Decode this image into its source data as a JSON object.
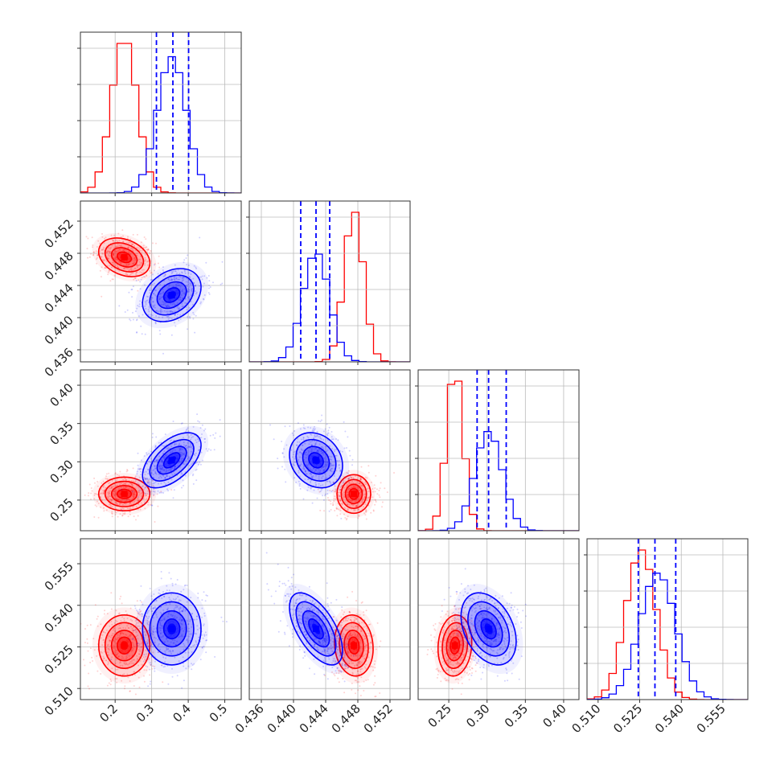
{
  "chart_data": {
    "type": "corner",
    "title": "",
    "grid": true,
    "parameters": [
      {
        "ticks": [
          "0.2",
          "0.3",
          "0.4",
          "0.5"
        ],
        "tick_values": [
          0.2,
          0.3,
          0.4,
          0.5
        ],
        "range": [
          0.105,
          0.545
        ]
      },
      {
        "ticks": [
          "0.436",
          "0.440",
          "0.444",
          "0.448",
          "0.452"
        ],
        "tick_values": [
          0.436,
          0.44,
          0.444,
          0.448,
          0.452
        ],
        "range": [
          0.4345,
          0.4545
        ]
      },
      {
        "ticks": [
          "0.25",
          "0.30",
          "0.35",
          "0.40"
        ],
        "tick_values": [
          0.25,
          0.3,
          0.35,
          0.4
        ],
        "range": [
          0.21,
          0.42
        ]
      },
      {
        "ticks": [
          "0.510",
          "0.525",
          "0.540",
          "0.555"
        ],
        "tick_values": [
          0.51,
          0.525,
          0.54,
          0.555
        ],
        "range": [
          0.506,
          0.564
        ]
      }
    ],
    "series": [
      {
        "color": "#ff0000",
        "mean": [
          0.225,
          0.4475,
          0.258,
          0.5255
        ],
        "std": [
          0.035,
          0.0012,
          0.011,
          0.0055
        ],
        "corr": [
          [
            1,
            -0.3,
            0.0,
            0.0
          ],
          [
            -0.3,
            1,
            0.0,
            -0.1
          ],
          [
            0.0,
            0.0,
            1,
            0.1
          ],
          [
            0.0,
            -0.1,
            0.1,
            1
          ]
        ]
      },
      {
        "color": "#0000ff",
        "mean": [
          0.355,
          0.4428,
          0.302,
          0.5315
        ],
        "std": [
          0.04,
          0.00165,
          0.018,
          0.0065
        ],
        "corr": [
          [
            1,
            0.3,
            0.55,
            0.0
          ],
          [
            0.3,
            1,
            -0.2,
            -0.6
          ],
          [
            0.55,
            -0.2,
            1,
            -0.35
          ],
          [
            0.0,
            -0.6,
            -0.35,
            1
          ]
        ]
      }
    ],
    "quantile_lines": {
      "color": "#0000ff",
      "values": [
        [
          0.313,
          0.358,
          0.401
        ],
        [
          0.4409,
          0.4428,
          0.4445
        ],
        [
          0.287,
          0.302,
          0.325
        ],
        [
          0.5245,
          0.5305,
          0.538
        ]
      ]
    }
  }
}
